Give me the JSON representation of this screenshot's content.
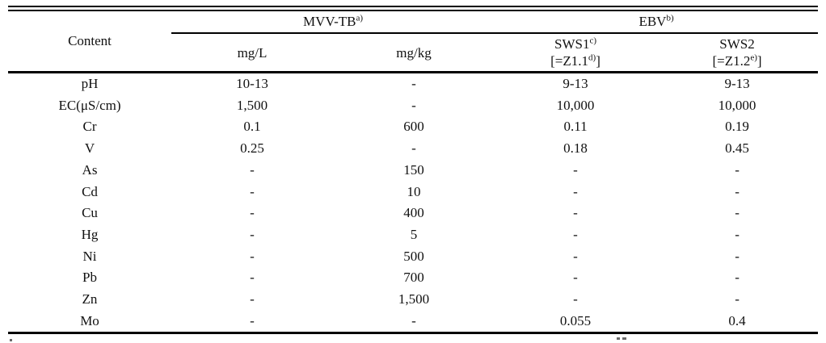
{
  "table": {
    "title_column_header": "Content",
    "groups": [
      {
        "label": "MVV-TB",
        "footnote_mark": "a)"
      },
      {
        "label": "EBV",
        "footnote_mark": "b)"
      }
    ],
    "sub_columns": [
      {
        "label": "mg/L",
        "footnote_mark": "",
        "alias_pre": "",
        "alias_mark": "",
        "alias_post": ""
      },
      {
        "label": "mg/kg",
        "footnote_mark": "",
        "alias_pre": "",
        "alias_mark": "",
        "alias_post": ""
      },
      {
        "label": "SWS1",
        "footnote_mark": "c)",
        "alias_pre": "[=Z1.1",
        "alias_mark": "d)",
        "alias_post": "]"
      },
      {
        "label": "SWS2",
        "footnote_mark": "",
        "alias_pre": "[=Z1.2",
        "alias_mark": "e)",
        "alias_post": "]"
      }
    ],
    "rows": [
      [
        "pH",
        "10-13",
        "-",
        "9-13",
        "9-13"
      ],
      [
        "EC(μS/cm)",
        "1,500",
        "-",
        "10,000",
        "10,000"
      ],
      [
        "Cr",
        "0.1",
        "600",
        "0.11",
        "0.19"
      ],
      [
        "V",
        "0.25",
        "-",
        "0.18",
        "0.45"
      ],
      [
        "As",
        "-",
        "150",
        "-",
        "-"
      ],
      [
        "Cd",
        "-",
        "10",
        "-",
        "-"
      ],
      [
        "Cu",
        "-",
        "400",
        "-",
        "-"
      ],
      [
        "Hg",
        "-",
        "5",
        "-",
        "-"
      ],
      [
        "Ni",
        "-",
        "500",
        "-",
        "-"
      ],
      [
        "Pb",
        "-",
        "700",
        "-",
        "-"
      ],
      [
        "Zn",
        "-",
        "1,500",
        "-",
        "-"
      ],
      [
        "Mo",
        "-",
        "-",
        "0.055",
        "0.4"
      ]
    ],
    "colors": {
      "text": "#111111",
      "rule": "#000000",
      "background": "#ffffff"
    }
  }
}
